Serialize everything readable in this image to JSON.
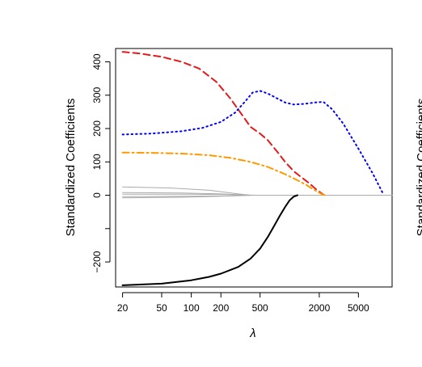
{
  "chart_data": {
    "type": "line",
    "xlabel": "λ",
    "ylabel": "Standardized Coefficients",
    "x_scale": "log",
    "xlim": [
      17,
      11000
    ],
    "ylim": [
      -275,
      440
    ],
    "x_ticks": [
      20,
      50,
      100,
      200,
      500,
      2000,
      5000
    ],
    "x_tick_labels": [
      "20",
      "50",
      "100",
      "200",
      "500",
      "2000",
      "5000"
    ],
    "y_ticks": [
      -200,
      -100,
      0,
      100,
      200,
      300,
      400
    ],
    "y_tick_labels": [
      "−200",
      "",
      "0",
      "100",
      "200",
      "300",
      "400"
    ],
    "grid": false,
    "series": [
      {
        "color": "#e41a1c",
        "style": "dashed",
        "x": [
          20,
          30,
          50,
          80,
          120,
          180,
          250,
          330,
          400,
          500,
          600,
          750,
          900,
          1100,
          1300,
          1600,
          1900,
          2200
        ],
        "y": [
          430,
          425,
          415,
          400,
          380,
          340,
          290,
          240,
          205,
          185,
          165,
          130,
          100,
          72,
          55,
          35,
          15,
          2
        ]
      },
      {
        "color": "#0000ff",
        "style": "dotted",
        "x": [
          20,
          40,
          80,
          130,
          200,
          280,
          350,
          420,
          500,
          600,
          750,
          900,
          1100,
          1400,
          1800,
          2200,
          2700,
          3500,
          5000,
          7000,
          9000
        ],
        "y": [
          182,
          185,
          192,
          202,
          220,
          248,
          280,
          308,
          313,
          305,
          290,
          278,
          272,
          274,
          278,
          280,
          258,
          215,
          140,
          65,
          2
        ]
      },
      {
        "color": "#ff9900",
        "style": "dashdot",
        "x": [
          20,
          40,
          80,
          150,
          250,
          400,
          600,
          900,
          1200,
          1500,
          1800,
          2100,
          2300
        ],
        "y": [
          128,
          127,
          125,
          120,
          112,
          100,
          85,
          63,
          45,
          30,
          15,
          4,
          0
        ]
      },
      {
        "color": "#000000",
        "style": "solid",
        "x": [
          20,
          50,
          100,
          150,
          200,
          300,
          400,
          500,
          600,
          700,
          800,
          900,
          1000,
          1100,
          1200
        ],
        "y": [
          -270,
          -265,
          -255,
          -245,
          -235,
          -215,
          -190,
          -160,
          -125,
          -90,
          -60,
          -35,
          -15,
          -4,
          0
        ]
      },
      {
        "color": "#aaaaaa",
        "style": "solid",
        "x": [
          20,
          60,
          150,
          300,
          400
        ],
        "y": [
          25,
          22,
          15,
          4,
          0
        ]
      },
      {
        "color": "#aaaaaa",
        "style": "solid",
        "x": [
          20,
          80,
          200,
          400
        ],
        "y": [
          8,
          7,
          4,
          0
        ]
      },
      {
        "color": "#aaaaaa",
        "style": "solid",
        "x": [
          20,
          100,
          250,
          450
        ],
        "y": [
          3,
          3,
          2,
          0
        ]
      },
      {
        "color": "#aaaaaa",
        "style": "solid",
        "x": [
          20,
          80,
          200,
          350
        ],
        "y": [
          -8,
          -6,
          -3,
          0
        ]
      },
      {
        "color": "#aaaaaa",
        "style": "solid",
        "x": [
          20,
          100,
          250,
          450
        ],
        "y": [
          -4,
          -3,
          -2,
          0
        ]
      },
      {
        "color": "#aaaaaa",
        "style": "solid",
        "x": [
          400,
          11000
        ],
        "y": [
          0,
          0
        ]
      }
    ]
  }
}
